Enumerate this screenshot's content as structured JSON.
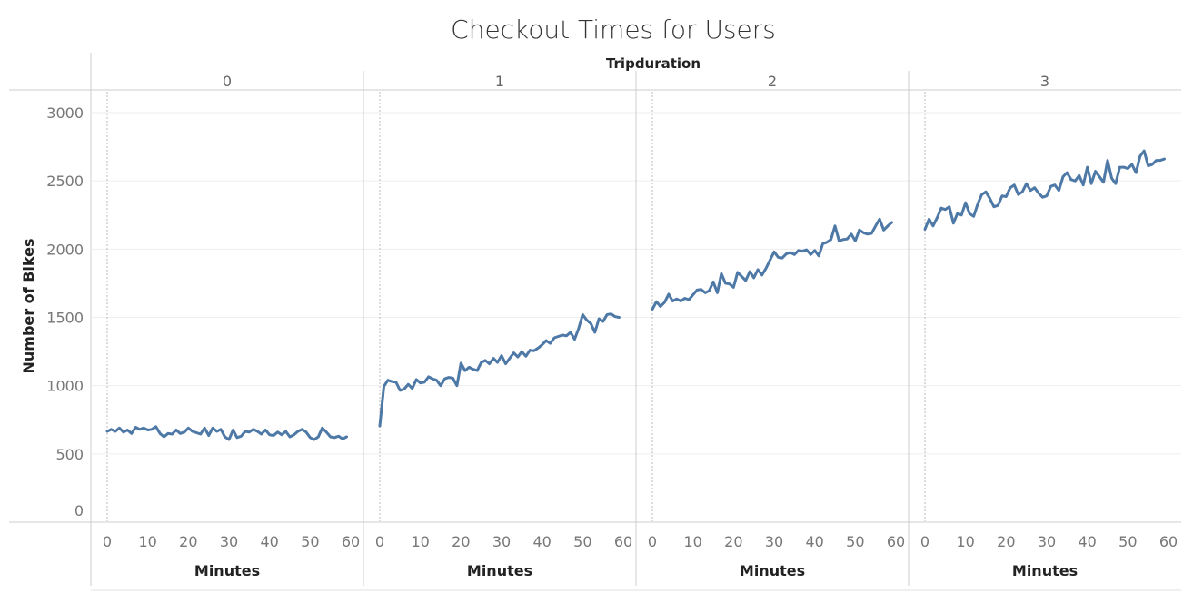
{
  "chart_data": {
    "type": "line",
    "title": "Checkout Times for Users",
    "facet_title": "Tripduration",
    "ylabel": "Number of Bikes",
    "xlabel": "Minutes",
    "ylim": [
      0,
      3000
    ],
    "yticks": [
      0,
      500,
      1000,
      1500,
      2000,
      2500,
      3000
    ],
    "xlim": [
      0,
      60
    ],
    "xticks": [
      0,
      10,
      20,
      30,
      40,
      50,
      60
    ],
    "grid": true,
    "color": "#4e79a7",
    "panels": [
      {
        "label": "0",
        "x": [
          0,
          1,
          2,
          3,
          4,
          5,
          6,
          7,
          8,
          9,
          10,
          11,
          12,
          13,
          14,
          15,
          16,
          17,
          18,
          19,
          20,
          21,
          22,
          23,
          24,
          25,
          26,
          27,
          28,
          29,
          30,
          31,
          32,
          33,
          34,
          35,
          36,
          37,
          38,
          39,
          40,
          41,
          42,
          43,
          44,
          45,
          46,
          47,
          48,
          49,
          50,
          51,
          52,
          53,
          54,
          55,
          56,
          57,
          58,
          59
        ],
        "values": [
          665,
          680,
          665,
          690,
          660,
          675,
          650,
          695,
          680,
          690,
          675,
          680,
          700,
          650,
          625,
          650,
          645,
          675,
          650,
          660,
          690,
          665,
          655,
          645,
          690,
          635,
          690,
          665,
          680,
          625,
          605,
          675,
          620,
          630,
          665,
          660,
          680,
          665,
          645,
          675,
          640,
          635,
          660,
          640,
          665,
          625,
          640,
          665,
          680,
          660,
          620,
          605,
          625,
          690,
          660,
          625,
          620,
          630,
          610,
          625
        ]
      },
      {
        "label": "1",
        "x": [
          0,
          1,
          2,
          3,
          4,
          5,
          6,
          7,
          8,
          9,
          10,
          11,
          12,
          13,
          14,
          15,
          16,
          17,
          18,
          19,
          20,
          21,
          22,
          23,
          24,
          25,
          26,
          27,
          28,
          29,
          30,
          31,
          32,
          33,
          34,
          35,
          36,
          37,
          38,
          39,
          40,
          41,
          42,
          43,
          44,
          45,
          46,
          47,
          48,
          49,
          50,
          51,
          52,
          53,
          54,
          55,
          56,
          57,
          58,
          59
        ],
        "values": [
          705,
          995,
          1040,
          1030,
          1025,
          965,
          975,
          1010,
          980,
          1045,
          1020,
          1025,
          1065,
          1050,
          1040,
          1000,
          1050,
          1060,
          1055,
          1000,
          1165,
          1110,
          1135,
          1120,
          1110,
          1170,
          1185,
          1160,
          1200,
          1170,
          1220,
          1160,
          1200,
          1240,
          1210,
          1250,
          1215,
          1260,
          1255,
          1275,
          1300,
          1330,
          1310,
          1350,
          1360,
          1370,
          1365,
          1390,
          1340,
          1420,
          1520,
          1480,
          1455,
          1390,
          1490,
          1470,
          1520,
          1525,
          1505,
          1500
        ]
      },
      {
        "label": "2",
        "x": [
          0,
          1,
          2,
          3,
          4,
          5,
          6,
          7,
          8,
          9,
          10,
          11,
          12,
          13,
          14,
          15,
          16,
          17,
          18,
          19,
          20,
          21,
          22,
          23,
          24,
          25,
          26,
          27,
          28,
          29,
          30,
          31,
          32,
          33,
          34,
          35,
          36,
          37,
          38,
          39,
          40,
          41,
          42,
          43,
          44,
          45,
          46,
          47,
          48,
          49,
          50,
          51,
          52,
          53,
          54,
          55,
          56,
          57,
          58,
          59
        ],
        "values": [
          1560,
          1615,
          1580,
          1610,
          1670,
          1620,
          1635,
          1620,
          1640,
          1630,
          1665,
          1700,
          1705,
          1680,
          1695,
          1760,
          1680,
          1820,
          1750,
          1745,
          1720,
          1830,
          1800,
          1770,
          1835,
          1790,
          1850,
          1810,
          1860,
          1920,
          1980,
          1940,
          1935,
          1965,
          1975,
          1960,
          1990,
          1985,
          1995,
          1960,
          1990,
          1950,
          2040,
          2050,
          2070,
          2170,
          2060,
          2070,
          2075,
          2110,
          2060,
          2140,
          2120,
          2110,
          2115,
          2170,
          2220,
          2140,
          2170,
          2195
        ]
      },
      {
        "label": "3",
        "x": [
          0,
          1,
          2,
          3,
          4,
          5,
          6,
          7,
          8,
          9,
          10,
          11,
          12,
          13,
          14,
          15,
          16,
          17,
          18,
          19,
          20,
          21,
          22,
          23,
          24,
          25,
          26,
          27,
          28,
          29,
          30,
          31,
          32,
          33,
          34,
          35,
          36,
          37,
          38,
          39,
          40,
          41,
          42,
          43,
          44,
          45,
          46,
          47,
          48,
          49,
          50,
          51,
          52,
          53,
          54,
          55,
          56,
          57,
          58,
          59
        ],
        "values": [
          2145,
          2220,
          2170,
          2230,
          2300,
          2290,
          2310,
          2190,
          2260,
          2250,
          2340,
          2260,
          2240,
          2330,
          2400,
          2420,
          2370,
          2310,
          2320,
          2390,
          2385,
          2450,
          2470,
          2400,
          2420,
          2480,
          2430,
          2450,
          2410,
          2380,
          2390,
          2460,
          2470,
          2430,
          2530,
          2560,
          2510,
          2500,
          2540,
          2470,
          2600,
          2480,
          2570,
          2530,
          2490,
          2650,
          2520,
          2480,
          2600,
          2600,
          2590,
          2620,
          2560,
          2680,
          2720,
          2610,
          2620,
          2650,
          2650,
          2660
        ]
      }
    ]
  }
}
